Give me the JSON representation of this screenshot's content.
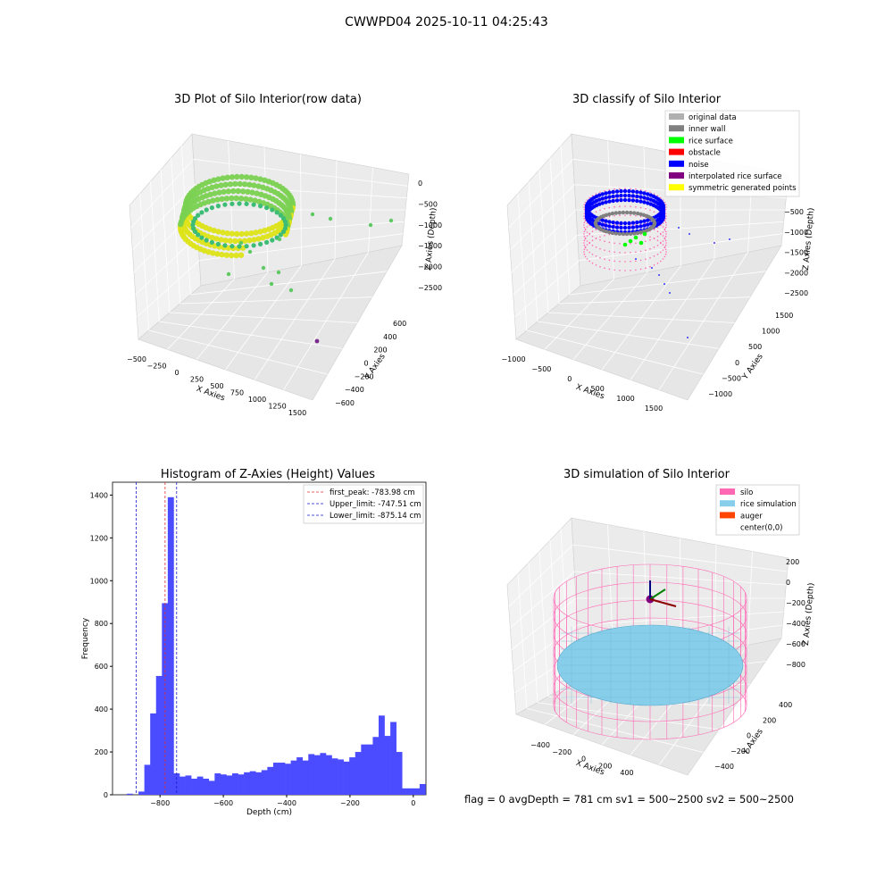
{
  "figure": {
    "suptitle": "CWWPD04 2025-10-11 04:25:43",
    "footer": "flag = 0     avgDepth = 781 cm  sv1 = 500~2500  sv2 = 500~2500"
  },
  "colors": {
    "hist_bar": "#4b4bff",
    "first_peak": "#e03030",
    "limits": "#1a1acc",
    "silo": "#ff69b4",
    "rice_simulation": "#87ceeb",
    "auger": "#ff4500",
    "original_data": "#b0b0b0",
    "inner_wall": "#808080",
    "rice_surface": "#00ff00",
    "obstacle": "#ff0000",
    "noise": "#0000ff",
    "interpolated": "#800080",
    "symmetric": "#ffff00"
  },
  "chart_data": [
    {
      "type": "scatter",
      "subtype": "3d",
      "title": "3D Plot of Silo Interior(row data)",
      "xlabel": "X Axies",
      "ylabel": "Y Axies",
      "zlabel": "Z Axies (Depth)",
      "xticks": [
        "−500",
        "−250",
        "0",
        "250",
        "500",
        "750",
        "1000",
        "1250",
        "1500"
      ],
      "yticks": [
        "−600",
        "−400",
        "−200",
        "0",
        "200",
        "400",
        "600"
      ],
      "zticks": [
        "0",
        "−500",
        "−1000",
        "−1500",
        "−2000",
        "−2500"
      ],
      "colormap": "viridis by depth"
    },
    {
      "type": "scatter",
      "subtype": "3d",
      "title": "3D classify of Silo Interior",
      "xlabel": "X Axies",
      "ylabel": "Y Axies",
      "zlabel": "Z Axies (Depth)",
      "xticks": [
        "−1000",
        "−500",
        "0",
        "500",
        "1000",
        "1500"
      ],
      "yticks": [
        "−1000",
        "−500",
        "0",
        "500",
        "1000",
        "1500"
      ],
      "zticks": [
        "−500",
        "−1000",
        "−1500",
        "−2000",
        "−2500"
      ],
      "legend": [
        "original data",
        "inner wall",
        "rice surface",
        "obstacle",
        "noise",
        "interpolated rice surface",
        "symmetric generated points"
      ],
      "legend_position": "top-right"
    },
    {
      "type": "bar",
      "subtype": "histogram",
      "title": "Histogram of Z-Axies (Height) Values",
      "xlabel": "Depth (cm)",
      "ylabel": "Frequency",
      "xlim": [
        -950,
        40
      ],
      "ylim": [
        0,
        1460
      ],
      "xticks": [
        "−800",
        "−600",
        "−400",
        "−200",
        "0"
      ],
      "xtick_values": [
        -800,
        -600,
        -400,
        -200,
        0
      ],
      "yticks": [
        "0",
        "200",
        "400",
        "600",
        "800",
        "1000",
        "1200",
        "1400"
      ],
      "ytick_values": [
        0,
        200,
        400,
        600,
        800,
        1000,
        1200,
        1400
      ],
      "bin_width": 18.5,
      "bin_start": -905,
      "values": [
        5,
        0,
        15,
        140,
        380,
        555,
        895,
        1390,
        100,
        85,
        90,
        75,
        85,
        75,
        65,
        100,
        95,
        90,
        100,
        95,
        105,
        110,
        105,
        115,
        130,
        150,
        150,
        145,
        160,
        175,
        160,
        190,
        185,
        195,
        185,
        170,
        165,
        155,
        175,
        200,
        235,
        235,
        270,
        370,
        275,
        340,
        200,
        30,
        30,
        30,
        50
      ],
      "vlines": [
        {
          "value": -783.98,
          "label": "first_peak: -783.98 cm",
          "color": "first_peak"
        },
        {
          "value": -747.51,
          "label": "Upper_limit: -747.51 cm",
          "color": "limits"
        },
        {
          "value": -875.14,
          "label": "Lower_limit: -875.14 cm",
          "color": "limits"
        }
      ],
      "legend_position": "top-right"
    },
    {
      "type": "scatter",
      "subtype": "3d-surface",
      "title": "3D simulation of Silo Interior",
      "xlabel": "X Axies",
      "ylabel": "Y Axies",
      "zlabel": "Z Axies (Depth)",
      "xticks": [
        "−400",
        "−200",
        "0",
        "200",
        "400"
      ],
      "yticks": [
        "−400",
        "−200",
        "0",
        "200",
        "400"
      ],
      "zticks": [
        "200",
        "0",
        "−200",
        "−400",
        "−600",
        "−800"
      ],
      "legend": [
        "silo",
        "rice simulation",
        "auger",
        "center(0,0)"
      ],
      "legend_position": "top-right"
    }
  ]
}
